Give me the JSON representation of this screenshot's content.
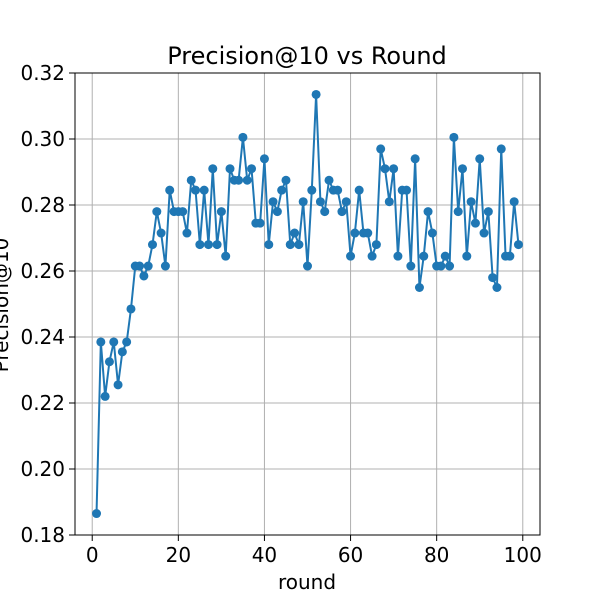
{
  "chart_data": {
    "type": "line",
    "title": "Precision@10 vs Round",
    "xlabel": "round",
    "ylabel": "Precision@10",
    "xlim": [
      -4,
      104
    ],
    "ylim": [
      0.18,
      0.32
    ],
    "xticks": [
      0,
      20,
      40,
      60,
      80,
      100
    ],
    "yticks": [
      0.18,
      0.2,
      0.22,
      0.24,
      0.26,
      0.28,
      0.3,
      0.32
    ],
    "ytick_labels": [
      "0.18",
      "0.20",
      "0.22",
      "0.24",
      "0.26",
      "0.28",
      "0.30",
      "0.32"
    ],
    "grid": true,
    "marker": "circle",
    "series": [
      {
        "color": "#1f77b4",
        "x": [
          1,
          2,
          3,
          4,
          5,
          6,
          7,
          8,
          9,
          10,
          11,
          12,
          13,
          14,
          15,
          16,
          17,
          18,
          19,
          20,
          21,
          22,
          23,
          24,
          25,
          26,
          27,
          28,
          29,
          30,
          31,
          32,
          33,
          34,
          35,
          36,
          37,
          38,
          39,
          40,
          41,
          42,
          43,
          44,
          45,
          46,
          47,
          48,
          49,
          50,
          51,
          52,
          53,
          54,
          55,
          56,
          57,
          58,
          59,
          60,
          61,
          62,
          63,
          64,
          65,
          66,
          67,
          68,
          69,
          70,
          71,
          72,
          73,
          74,
          75,
          76,
          77,
          78,
          79,
          80,
          81,
          82,
          83,
          84,
          85,
          86,
          87,
          88,
          89,
          90,
          91,
          92,
          93,
          94,
          95,
          96,
          97,
          98,
          99
        ],
        "y": [
          0.1865,
          0.2385,
          0.222,
          0.2325,
          0.2385,
          0.2255,
          0.2355,
          0.2385,
          0.2485,
          0.2615,
          0.2615,
          0.2585,
          0.2615,
          0.268,
          0.278,
          0.2715,
          0.2615,
          0.2845,
          0.278,
          0.278,
          0.278,
          0.2715,
          0.2875,
          0.2845,
          0.268,
          0.2845,
          0.268,
          0.291,
          0.268,
          0.278,
          0.2645,
          0.291,
          0.2875,
          0.2875,
          0.3005,
          0.2875,
          0.291,
          0.2745,
          0.2745,
          0.294,
          0.268,
          0.281,
          0.278,
          0.2845,
          0.2875,
          0.268,
          0.2715,
          0.268,
          0.281,
          0.2615,
          0.2845,
          0.3135,
          0.281,
          0.278,
          0.2875,
          0.2845,
          0.2845,
          0.278,
          0.281,
          0.2645,
          0.2715,
          0.2845,
          0.2715,
          0.2715,
          0.2645,
          0.268,
          0.297,
          0.291,
          0.281,
          0.291,
          0.2645,
          0.2845,
          0.2845,
          0.2615,
          0.294,
          0.255,
          0.2645,
          0.278,
          0.2715,
          0.2615,
          0.2615,
          0.2645,
          0.2615,
          0.3005,
          0.278,
          0.291,
          0.2645,
          0.281,
          0.2745,
          0.294,
          0.2715,
          0.278,
          0.258,
          0.255,
          0.297,
          0.2645,
          0.2645,
          0.281,
          0.268
        ]
      }
    ]
  }
}
